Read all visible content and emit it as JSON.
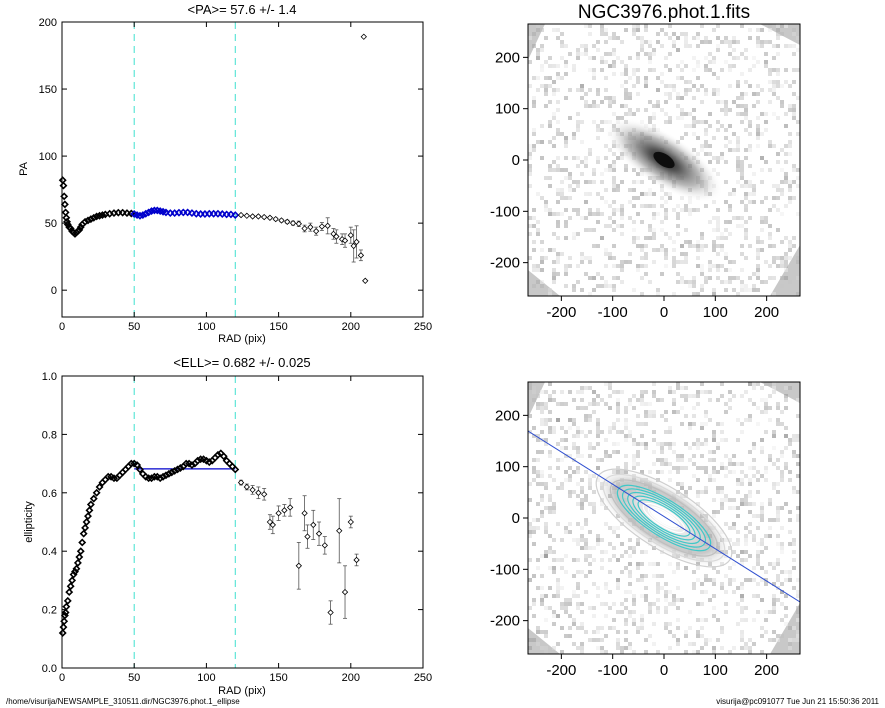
{
  "footer": {
    "path": "/home/visurija/NEWSAMPLE_310511.dir/NGC3976.phot.1_ellipse",
    "user_time": "visurija@pc091077  Tue Jun 21 15:50:36 2011"
  },
  "colors": {
    "axis": "#000000",
    "fit": "#0000cc",
    "guide": "#40e0d0",
    "sky": "#c8c8c8",
    "contour": "#40c8c8",
    "pa_line": "#3050d0"
  },
  "chart_data": [
    {
      "id": "pa-plot",
      "type": "scatter",
      "title": "<PA>=  57.6 +/-   1.4",
      "xlabel": "RAD (pix)",
      "ylabel": "PA",
      "xlim": [
        0,
        250
      ],
      "ylim": [
        -20,
        200
      ],
      "xticks": [
        0,
        50,
        100,
        150,
        200,
        250
      ],
      "yticks": [
        0,
        50,
        100,
        150,
        200
      ],
      "vlines": [
        50,
        120
      ],
      "fit_line": null,
      "dense_curve": [
        [
          0.5,
          82
        ],
        [
          1,
          78
        ],
        [
          1.5,
          70
        ],
        [
          2,
          64
        ],
        [
          2.5,
          58
        ],
        [
          3,
          54
        ],
        [
          3.5,
          51
        ],
        [
          4,
          49
        ],
        [
          5,
          47
        ],
        [
          6,
          46
        ],
        [
          7,
          44
        ],
        [
          8,
          43
        ],
        [
          9,
          42
        ],
        [
          10,
          43
        ],
        [
          11,
          44
        ],
        [
          12,
          45
        ],
        [
          13,
          47
        ],
        [
          14,
          49
        ],
        [
          16,
          51
        ],
        [
          18,
          52
        ],
        [
          20,
          53
        ],
        [
          22,
          54
        ],
        [
          24,
          55
        ],
        [
          26,
          55.5
        ],
        [
          28,
          56
        ],
        [
          30,
          56.5
        ],
        [
          33,
          57
        ],
        [
          36,
          57.5
        ],
        [
          39,
          57.8
        ],
        [
          42,
          57.8
        ],
        [
          45,
          57.5
        ],
        [
          48,
          57.2
        ],
        [
          50,
          56.8
        ],
        [
          52,
          56
        ],
        [
          54,
          55.5
        ],
        [
          56,
          56
        ],
        [
          58,
          57
        ],
        [
          60,
          58
        ],
        [
          62,
          59
        ],
        [
          64,
          59.5
        ],
        [
          66,
          59.5
        ],
        [
          68,
          59
        ],
        [
          70,
          58.5
        ],
        [
          72,
          58
        ],
        [
          75,
          57.5
        ],
        [
          78,
          57.5
        ],
        [
          81,
          57.8
        ],
        [
          84,
          58
        ],
        [
          87,
          58
        ],
        [
          90,
          57.5
        ],
        [
          93,
          57
        ],
        [
          96,
          56.8
        ],
        [
          99,
          56.8
        ],
        [
          102,
          57
        ],
        [
          105,
          57
        ],
        [
          108,
          57
        ],
        [
          111,
          56.8
        ],
        [
          114,
          56.5
        ],
        [
          117,
          56.5
        ],
        [
          120,
          56
        ]
      ],
      "highlight_range": [
        50,
        120
      ],
      "points": [
        {
          "x": 124,
          "y": 56,
          "e": 0.5
        },
        {
          "x": 128,
          "y": 55.5,
          "e": 0.5
        },
        {
          "x": 132,
          "y": 55,
          "e": 0.6
        },
        {
          "x": 136,
          "y": 55,
          "e": 0.7
        },
        {
          "x": 140,
          "y": 54.5,
          "e": 0.8
        },
        {
          "x": 144,
          "y": 54,
          "e": 0.9
        },
        {
          "x": 148,
          "y": 53,
          "e": 1
        },
        {
          "x": 152,
          "y": 52,
          "e": 1
        },
        {
          "x": 156,
          "y": 51,
          "e": 1.2
        },
        {
          "x": 160,
          "y": 50,
          "e": 1.5
        },
        {
          "x": 164,
          "y": 49.5,
          "e": 2
        },
        {
          "x": 168,
          "y": 46,
          "e": 2.5
        },
        {
          "x": 172,
          "y": 47,
          "e": 3
        },
        {
          "x": 176,
          "y": 44,
          "e": 3
        },
        {
          "x": 180,
          "y": 47.5,
          "e": 3
        },
        {
          "x": 184,
          "y": 48,
          "e": 6
        },
        {
          "x": 188,
          "y": 42,
          "e": 4
        },
        {
          "x": 190,
          "y": 40,
          "e": 5
        },
        {
          "x": 194,
          "y": 38,
          "e": 4
        },
        {
          "x": 196,
          "y": 37,
          "e": 5
        },
        {
          "x": 200,
          "y": 41,
          "e": 6
        },
        {
          "x": 202,
          "y": 33,
          "e": 12
        },
        {
          "x": 204,
          "y": 36,
          "e": 12
        },
        {
          "x": 207,
          "y": 26,
          "e": 4
        },
        {
          "x": 210,
          "y": 7,
          "e": 0
        },
        {
          "x": 209,
          "y": 189,
          "e": 0
        }
      ]
    },
    {
      "id": "ell-plot",
      "type": "scatter",
      "title": "<ELL>= 0.682 +/-  0.025",
      "xlabel": "RAD (pix)",
      "ylabel": "ellipticity",
      "xlim": [
        0,
        250
      ],
      "ylim": [
        0,
        1
      ],
      "xticks": [
        0,
        50,
        100,
        150,
        200,
        250
      ],
      "yticks": [
        0,
        0.2,
        0.4,
        0.6,
        0.8,
        1.0
      ],
      "ytick_labels": [
        "0.0",
        "0.2",
        "0.4",
        "0.6",
        "0.8",
        "1.0"
      ],
      "vlines": [
        50,
        120
      ],
      "fit_line": {
        "x0": 50,
        "x1": 120,
        "y": 0.682
      },
      "dense_curve": [
        [
          0.5,
          0.12
        ],
        [
          1,
          0.14
        ],
        [
          1.5,
          0.16
        ],
        [
          2,
          0.18
        ],
        [
          2.5,
          0.19
        ],
        [
          3,
          0.21
        ],
        [
          4,
          0.23
        ],
        [
          5,
          0.26
        ],
        [
          6,
          0.28
        ],
        [
          7,
          0.3
        ],
        [
          8,
          0.32
        ],
        [
          9,
          0.33
        ],
        [
          10,
          0.34
        ],
        [
          11,
          0.36
        ],
        [
          12,
          0.38
        ],
        [
          13,
          0.4
        ],
        [
          14,
          0.43
        ],
        [
          15,
          0.46
        ],
        [
          16,
          0.48
        ],
        [
          17,
          0.5
        ],
        [
          18,
          0.52
        ],
        [
          19,
          0.54
        ],
        [
          20,
          0.56
        ],
        [
          22,
          0.58
        ],
        [
          24,
          0.6
        ],
        [
          26,
          0.62
        ],
        [
          28,
          0.635
        ],
        [
          30,
          0.645
        ],
        [
          32,
          0.655
        ],
        [
          34,
          0.655
        ],
        [
          36,
          0.65
        ],
        [
          38,
          0.65
        ],
        [
          40,
          0.66
        ],
        [
          42,
          0.67
        ],
        [
          44,
          0.68
        ],
        [
          46,
          0.69
        ],
        [
          48,
          0.7
        ],
        [
          50,
          0.7
        ],
        [
          52,
          0.695
        ],
        [
          54,
          0.68
        ],
        [
          56,
          0.665
        ],
        [
          58,
          0.655
        ],
        [
          60,
          0.65
        ],
        [
          62,
          0.65
        ],
        [
          64,
          0.655
        ],
        [
          66,
          0.655
        ],
        [
          68,
          0.65
        ],
        [
          70,
          0.655
        ],
        [
          72,
          0.66
        ],
        [
          74,
          0.665
        ],
        [
          76,
          0.67
        ],
        [
          78,
          0.675
        ],
        [
          80,
          0.68
        ],
        [
          82,
          0.685
        ],
        [
          84,
          0.69
        ],
        [
          86,
          0.7
        ],
        [
          88,
          0.7
        ],
        [
          90,
          0.695
        ],
        [
          92,
          0.7
        ],
        [
          94,
          0.71
        ],
        [
          96,
          0.715
        ],
        [
          98,
          0.715
        ],
        [
          100,
          0.71
        ],
        [
          102,
          0.705
        ],
        [
          104,
          0.71
        ],
        [
          106,
          0.72
        ],
        [
          108,
          0.73
        ],
        [
          110,
          0.735
        ],
        [
          112,
          0.725
        ],
        [
          114,
          0.71
        ],
        [
          116,
          0.7
        ],
        [
          118,
          0.69
        ],
        [
          120,
          0.68
        ]
      ],
      "highlight_range": [],
      "points": [
        {
          "x": 124,
          "y": 0.635,
          "e": 0.008
        },
        {
          "x": 128,
          "y": 0.62,
          "e": 0.01
        },
        {
          "x": 132,
          "y": 0.61,
          "e": 0.015
        },
        {
          "x": 136,
          "y": 0.6,
          "e": 0.02
        },
        {
          "x": 140,
          "y": 0.595,
          "e": 0.02
        },
        {
          "x": 144,
          "y": 0.5,
          "e": 0.025
        },
        {
          "x": 146,
          "y": 0.49,
          "e": 0.03
        },
        {
          "x": 150,
          "y": 0.53,
          "e": 0.025
        },
        {
          "x": 154,
          "y": 0.54,
          "e": 0.02
        },
        {
          "x": 158,
          "y": 0.55,
          "e": 0.03
        },
        {
          "x": 164,
          "y": 0.35,
          "e": 0.08
        },
        {
          "x": 168,
          "y": 0.53,
          "e": 0.06
        },
        {
          "x": 170,
          "y": 0.45,
          "e": 0.04
        },
        {
          "x": 174,
          "y": 0.49,
          "e": 0.05
        },
        {
          "x": 178,
          "y": 0.46,
          "e": 0.04
        },
        {
          "x": 182,
          "y": 0.42,
          "e": 0.03
        },
        {
          "x": 186,
          "y": 0.19,
          "e": 0.04
        },
        {
          "x": 192,
          "y": 0.47,
          "e": 0.11
        },
        {
          "x": 196,
          "y": 0.26,
          "e": 0.09
        },
        {
          "x": 200,
          "y": 0.5,
          "e": 0.02
        },
        {
          "x": 204,
          "y": 0.37,
          "e": 0.02
        }
      ]
    },
    {
      "id": "image-top",
      "type": "heatmap",
      "title": "NGC3976.phot.1.fits",
      "xlim": [
        -265,
        265
      ],
      "ylim": [
        -265,
        265
      ],
      "xticks": [
        -200,
        -100,
        0,
        100,
        200
      ],
      "yticks": [
        -200,
        -100,
        0,
        100,
        200
      ],
      "galaxy": {
        "center": [
          0,
          0
        ],
        "pa_deg": 57.6,
        "ellipticity": 0.682
      },
      "contours": false
    },
    {
      "id": "image-bottom",
      "type": "heatmap",
      "title": "",
      "xlim": [
        -265,
        265
      ],
      "ylim": [
        -265,
        265
      ],
      "xticks": [
        -200,
        -100,
        0,
        100,
        200
      ],
      "yticks": [
        -200,
        -100,
        0,
        100,
        200
      ],
      "galaxy": {
        "center": [
          0,
          0
        ],
        "pa_deg": 57.6,
        "ellipticity": 0.682
      },
      "contours": true
    }
  ]
}
